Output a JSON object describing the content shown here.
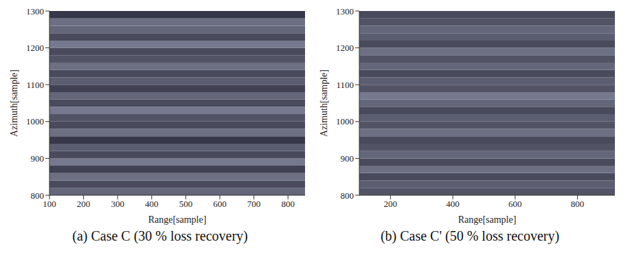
{
  "chart_data": [
    {
      "type": "image",
      "title": "(a) Case C (30 % loss recovery)",
      "x_label": "Range[sample]",
      "y_label": "Azimuth[sample]",
      "xlim": [
        100,
        850
      ],
      "xticks": [
        100,
        200,
        300,
        400,
        500,
        600,
        700,
        800
      ],
      "ylim": [
        800,
        1300
      ],
      "yticks": [
        800,
        900,
        1000,
        1100,
        1200,
        1300
      ],
      "clim": [
        0,
        1
      ],
      "cells": [
        0.45,
        0.3,
        0.5,
        0.25,
        0.55,
        0.3,
        0.4,
        0.2,
        0.5,
        0.3,
        0.35,
        0.55,
        0.3,
        0.45,
        0.25,
        0.4,
        0.3,
        0.5,
        0.35,
        0.3,
        0.55,
        0.3,
        0.45,
        0.5,
        0.2
      ]
    },
    {
      "type": "image",
      "title": "(b) Case C' (50 % loss recovery)",
      "x_label": "Range[sample]",
      "y_label": "Azimuth[sample]",
      "xlim": [
        100,
        920
      ],
      "xticks": [
        200,
        400,
        600,
        800
      ],
      "ylim": [
        800,
        1300
      ],
      "yticks": [
        800,
        900,
        1000,
        1100,
        1200,
        1300
      ],
      "clim": [
        0,
        1
      ],
      "cells": [
        0.35,
        0.4,
        0.3,
        0.5,
        0.3,
        0.45,
        0.35,
        0.3,
        0.5,
        0.35,
        0.4,
        0.3,
        0.45,
        0.55,
        0.35,
        0.4,
        0.3,
        0.45,
        0.35,
        0.5,
        0.3,
        0.4,
        0.45,
        0.35,
        0.3
      ]
    }
  ]
}
